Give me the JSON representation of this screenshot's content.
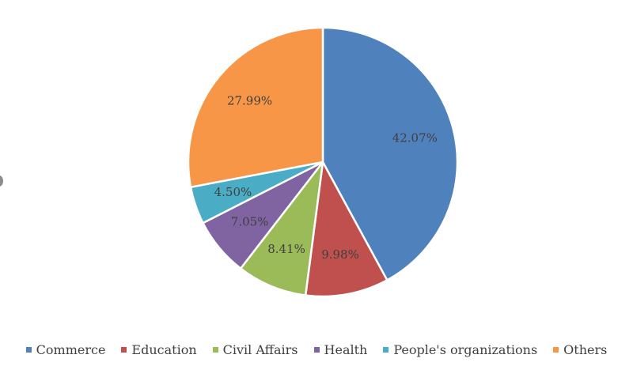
{
  "chart_data": {
    "type": "pie",
    "title": "",
    "categories": [
      "Commerce",
      "Education",
      "Civil Affairs",
      "Health",
      "People's organizations",
      "Others"
    ],
    "values": [
      42.07,
      9.98,
      8.41,
      7.05,
      4.5,
      27.99
    ],
    "data_labels": [
      "42.07%",
      "9.98%",
      "8.41%",
      "7.05%",
      "4.50%",
      "27.99%"
    ],
    "colors": [
      "#4F81BD",
      "#C0504D",
      "#9BBB59",
      "#8064A2",
      "#4BACC6",
      "#F79646"
    ],
    "legend": "bottom",
    "start_angle": "12 o'clock, clockwise"
  }
}
